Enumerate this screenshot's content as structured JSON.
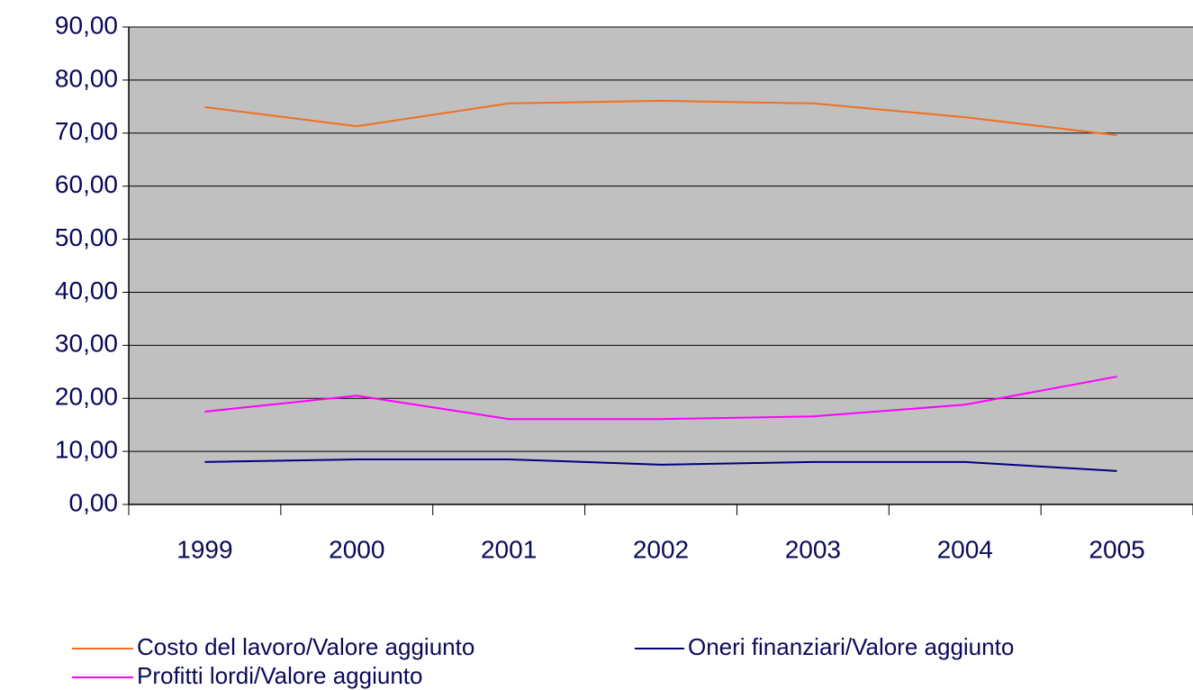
{
  "chart_data": {
    "type": "line",
    "categories": [
      "1999",
      "2000",
      "2001",
      "2002",
      "2003",
      "2004",
      "2005"
    ],
    "series": [
      {
        "name": "Costo del lavoro/Valore aggiunto",
        "color": "#f07020",
        "values": [
          74.9,
          71.3,
          75.6,
          76.1,
          75.6,
          73.0,
          69.6
        ]
      },
      {
        "name": "Oneri finanziari/Valore aggiunto",
        "color": "#000080",
        "values": [
          8.0,
          8.5,
          8.5,
          7.5,
          8.0,
          8.0,
          6.3
        ]
      },
      {
        "name": "Profitti lordi/Valore aggiunto",
        "color": "#ff00ff",
        "values": [
          17.5,
          20.5,
          16.1,
          16.1,
          16.6,
          18.8,
          24.1
        ]
      }
    ],
    "ylim": [
      0,
      90
    ],
    "yticks": [
      {
        "value": 0,
        "label": "0,00"
      },
      {
        "value": 10,
        "label": "10,00"
      },
      {
        "value": 20,
        "label": "20,00"
      },
      {
        "value": 30,
        "label": "30,00"
      },
      {
        "value": 40,
        "label": "40,00"
      },
      {
        "value": 50,
        "label": "50,00"
      },
      {
        "value": 60,
        "label": "60,00"
      },
      {
        "value": 70,
        "label": "70,00"
      },
      {
        "value": 80,
        "label": "80,00"
      },
      {
        "value": 90,
        "label": "90,00"
      }
    ],
    "grid": true,
    "plot_background": "#c0c0c0"
  }
}
